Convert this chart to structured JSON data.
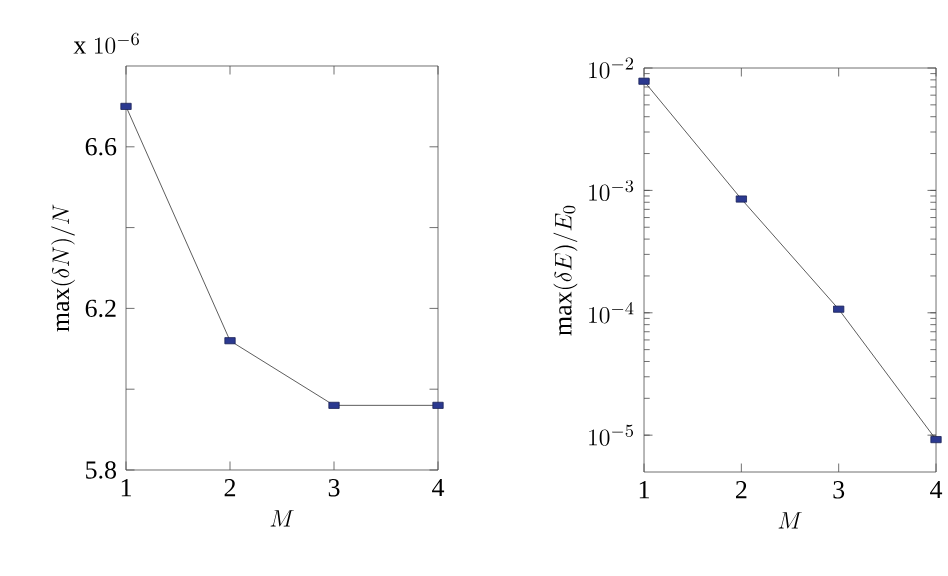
{
  "chart_data": [
    {
      "type": "line",
      "x": [
        1,
        2,
        3,
        4
      ],
      "values": [
        6.7,
        6.12,
        5.96,
        5.96
      ],
      "color": "#2b3990",
      "marker": "square",
      "xlim": [
        1,
        4
      ],
      "xticks": [
        1,
        2,
        3,
        4
      ],
      "ylim": [
        5.8,
        6.8
      ],
      "yticks": [
        5.8,
        {
          "value": 6.0,
          "label": null
        },
        6.2,
        {
          "value": 6.4,
          "label": null
        },
        6.6
      ],
      "xlabel": "M",
      "ylabel": "\\mathrm{max}(\\delta N)/N",
      "annotations": [
        "\\mathrm{x}\\ 10^{-6}"
      ]
    },
    {
      "type": "line",
      "x": [
        1,
        2,
        3,
        4
      ],
      "values": [
        0.0078,
        0.00085,
        0.000107,
        9.2e-06
      ],
      "color": "#2b3990",
      "marker": "square",
      "log": true,
      "xlim": [
        1,
        4
      ],
      "xticks": [
        1,
        2,
        3,
        4
      ],
      "ylim": [
        5e-06,
        0.01
      ],
      "yticks": [
        {
          "value": 1e-05,
          "label": "10^{-5}"
        },
        {
          "value": 0.0001,
          "label": "10^{-4}"
        },
        {
          "value": 0.001,
          "label": "10^{-3}"
        },
        {
          "value": 0.01,
          "label": "10^{-2}"
        }
      ],
      "xlabel": "M",
      "ylabel": "\\mathrm{max}(\\delta E)/E_0"
    }
  ]
}
